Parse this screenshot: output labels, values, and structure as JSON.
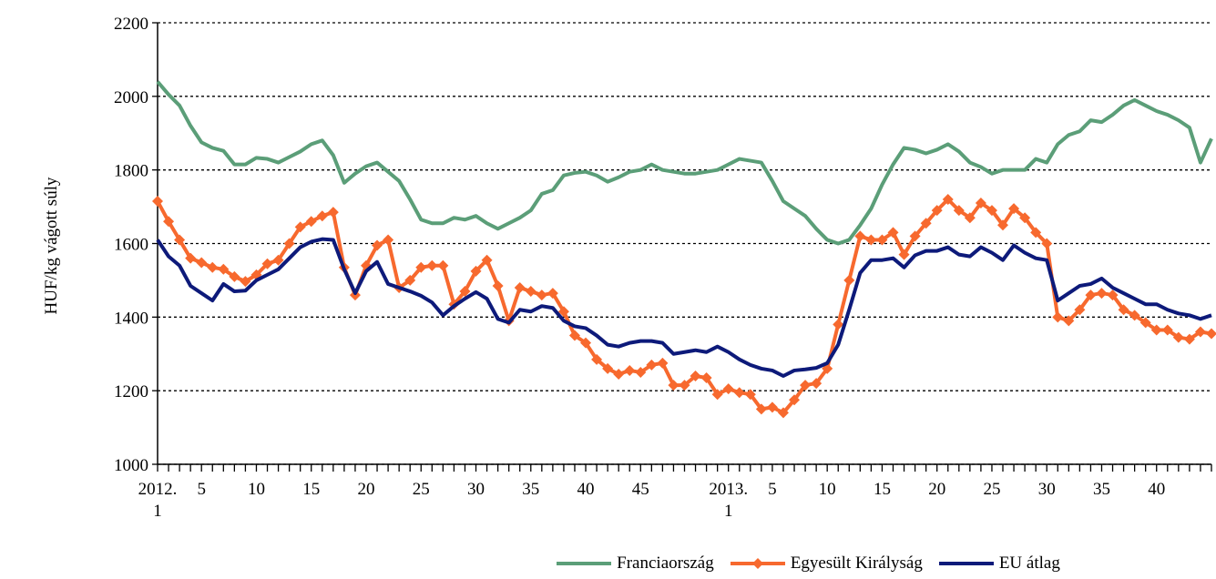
{
  "chart_data": {
    "type": "line",
    "y_label": "HUF/kg vágott súly",
    "categories": [
      "2012. 1",
      null,
      null,
      null,
      "5",
      null,
      null,
      null,
      null,
      "10",
      null,
      null,
      null,
      null,
      "15",
      null,
      null,
      null,
      null,
      "20",
      null,
      null,
      null,
      null,
      "25",
      null,
      null,
      null,
      null,
      "30",
      null,
      null,
      null,
      null,
      "35",
      null,
      null,
      null,
      null,
      "40",
      null,
      null,
      null,
      null,
      "45",
      null,
      null,
      null,
      null,
      null,
      null,
      null,
      "2013. 1",
      null,
      null,
      null,
      "5",
      null,
      null,
      null,
      null,
      "10",
      null,
      null,
      null,
      null,
      "15",
      null,
      null,
      null,
      null,
      "20",
      null,
      null,
      null,
      null,
      "25",
      null,
      null,
      null,
      null,
      "30",
      null,
      null,
      null,
      null,
      "35",
      null,
      null,
      null,
      null,
      "40",
      null,
      null,
      null,
      null,
      null
    ],
    "series": [
      {
        "name": "Franciaország",
        "color": "#5b9e78",
        "marker": false,
        "values": [
          2040,
          2005,
          1975,
          1920,
          1875,
          1860,
          1852,
          1815,
          1815,
          1833,
          1830,
          1820,
          1835,
          1850,
          1870,
          1880,
          1840,
          1765,
          1790,
          1810,
          1820,
          1795,
          1770,
          1720,
          1665,
          1655,
          1655,
          1670,
          1665,
          1675,
          1655,
          1640,
          1655,
          1670,
          1690,
          1735,
          1745,
          1785,
          1792,
          1795,
          1785,
          1768,
          1780,
          1795,
          1800,
          1815,
          1800,
          1795,
          1790,
          1790,
          1795,
          1800,
          1815,
          1830,
          1825,
          1820,
          1770,
          1715,
          1695,
          1675,
          1640,
          1610,
          1600,
          1610,
          1650,
          1695,
          1760,
          1815,
          1860,
          1855,
          1845,
          1855,
          1870,
          1850,
          1820,
          1808,
          1790,
          1800,
          1800,
          1800,
          1830,
          1820,
          1870,
          1895,
          1905,
          1935,
          1930,
          1950,
          1975,
          1990,
          1975,
          1960,
          1950,
          1935,
          1915,
          1820,
          1885
        ]
      },
      {
        "name": "Egyesült Királyság",
        "color": "#f7692e",
        "marker": true,
        "values": [
          1715,
          1660,
          1610,
          1560,
          1548,
          1535,
          1530,
          1510,
          1497,
          1515,
          1545,
          1555,
          1600,
          1645,
          1660,
          1675,
          1685,
          1535,
          1460,
          1540,
          1595,
          1610,
          1480,
          1500,
          1535,
          1540,
          1540,
          1435,
          1470,
          1525,
          1555,
          1485,
          1390,
          1480,
          1470,
          1460,
          1465,
          1415,
          1350,
          1330,
          1285,
          1260,
          1245,
          1255,
          1250,
          1270,
          1275,
          1215,
          1215,
          1240,
          1235,
          1190,
          1205,
          1195,
          1190,
          1150,
          1155,
          1140,
          1175,
          1215,
          1220,
          1260,
          1380,
          1500,
          1620,
          1610,
          1610,
          1630,
          1570,
          1620,
          1655,
          1690,
          1720,
          1690,
          1670,
          1710,
          1690,
          1650,
          1695,
          1670,
          1630,
          1600,
          1400,
          1390,
          1420,
          1460,
          1465,
          1460,
          1420,
          1405,
          1385,
          1365,
          1365,
          1345,
          1340,
          1360,
          1355
        ]
      },
      {
        "name": "EU átlag",
        "color": "#0d1a7a",
        "marker": false,
        "values": [
          1610,
          1565,
          1540,
          1485,
          1465,
          1445,
          1490,
          1470,
          1472,
          1500,
          1515,
          1530,
          1560,
          1590,
          1605,
          1612,
          1610,
          1530,
          1465,
          1525,
          1550,
          1490,
          1480,
          1470,
          1458,
          1440,
          1405,
          1430,
          1450,
          1468,
          1450,
          1395,
          1385,
          1420,
          1415,
          1430,
          1425,
          1390,
          1375,
          1370,
          1350,
          1325,
          1320,
          1330,
          1335,
          1335,
          1330,
          1300,
          1305,
          1310,
          1305,
          1320,
          1305,
          1285,
          1270,
          1260,
          1255,
          1240,
          1255,
          1258,
          1262,
          1275,
          1325,
          1420,
          1520,
          1555,
          1555,
          1560,
          1535,
          1568,
          1580,
          1580,
          1590,
          1570,
          1565,
          1590,
          1575,
          1555,
          1595,
          1575,
          1560,
          1555,
          1445,
          1465,
          1485,
          1490,
          1505,
          1480,
          1465,
          1450,
          1435,
          1435,
          1420,
          1410,
          1405,
          1395,
          1405
        ]
      }
    ],
    "ylim": [
      1000,
      2200
    ],
    "yticks": [
      1000,
      1200,
      1400,
      1600,
      1800,
      2000,
      2200
    ],
    "grid": true,
    "legend": "bottom"
  }
}
